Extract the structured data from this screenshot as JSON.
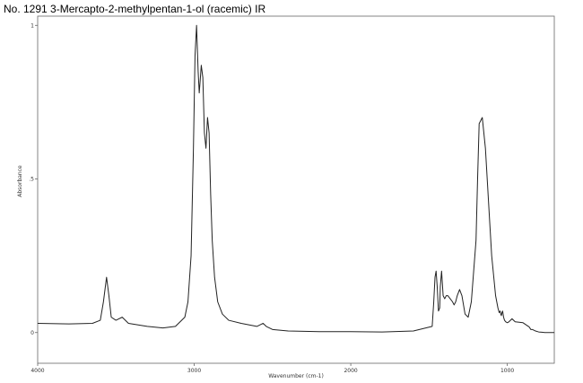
{
  "chart_data": {
    "type": "line",
    "title": "No. 1291 3-Mercapto-2-methylpentan-1-ol (racemic) IR",
    "xlabel": "Wavenumber (cm-1)",
    "ylabel": "Absorbance",
    "xlim": [
      4000,
      700
    ],
    "ylim": [
      -0.1,
      1.03
    ],
    "x_ticks": [
      {
        "value": 4000,
        "label": "4000"
      },
      {
        "value": 3000,
        "label": "3000"
      },
      {
        "value": 2000,
        "label": "2000"
      },
      {
        "value": 1000,
        "label": "1000"
      }
    ],
    "y_ticks": [
      {
        "value": 0,
        "label": "0"
      },
      {
        "value": 0.5,
        "label": ".5"
      },
      {
        "value": 1,
        "label": "1"
      }
    ],
    "grid": false,
    "series": [
      {
        "values_x": [
          4000,
          3800,
          3650,
          3600,
          3580,
          3560,
          3545,
          3530,
          3500,
          3460,
          3420,
          3300,
          3200,
          3120,
          3060,
          3040,
          3020,
          3005,
          2995,
          2985,
          2975,
          2968,
          2962,
          2955,
          2945,
          2935,
          2925,
          2915,
          2905,
          2895,
          2885,
          2870,
          2850,
          2820,
          2780,
          2700,
          2600,
          2560,
          2540,
          2500,
          2400,
          2200,
          2000,
          1800,
          1600,
          1480,
          1470,
          1462,
          1455,
          1448,
          1440,
          1432,
          1428,
          1420,
          1410,
          1400,
          1390,
          1380,
          1365,
          1350,
          1340,
          1330,
          1320,
          1305,
          1290,
          1270,
          1250,
          1230,
          1215,
          1200,
          1190,
          1180,
          1160,
          1140,
          1100,
          1075,
          1060,
          1052,
          1046,
          1042,
          1038,
          1034,
          1030,
          1024,
          1018,
          1010,
          1000,
          990,
          970,
          950,
          900,
          880,
          860,
          850,
          840,
          820,
          800,
          780,
          760,
          720,
          700
        ],
        "values_y": [
          0.03,
          0.028,
          0.03,
          0.04,
          0.1,
          0.18,
          0.12,
          0.05,
          0.04,
          0.05,
          0.03,
          0.02,
          0.015,
          0.02,
          0.05,
          0.1,
          0.25,
          0.6,
          0.9,
          1.0,
          0.85,
          0.78,
          0.82,
          0.87,
          0.83,
          0.65,
          0.6,
          0.7,
          0.65,
          0.45,
          0.3,
          0.18,
          0.1,
          0.06,
          0.04,
          0.03,
          0.02,
          0.03,
          0.02,
          0.01,
          0.005,
          0.003,
          0.003,
          0.002,
          0.005,
          0.02,
          0.1,
          0.18,
          0.2,
          0.15,
          0.07,
          0.08,
          0.15,
          0.2,
          0.12,
          0.11,
          0.12,
          0.12,
          0.11,
          0.1,
          0.09,
          0.1,
          0.12,
          0.14,
          0.12,
          0.06,
          0.05,
          0.1,
          0.2,
          0.3,
          0.5,
          0.68,
          0.7,
          0.6,
          0.25,
          0.12,
          0.08,
          0.065,
          0.07,
          0.06,
          0.055,
          0.065,
          0.07,
          0.05,
          0.04,
          0.035,
          0.032,
          0.035,
          0.045,
          0.035,
          0.032,
          0.025,
          0.018,
          0.01,
          0.01,
          0.005,
          0.002,
          0.001,
          0.0,
          0.0,
          0.0
        ]
      }
    ]
  }
}
